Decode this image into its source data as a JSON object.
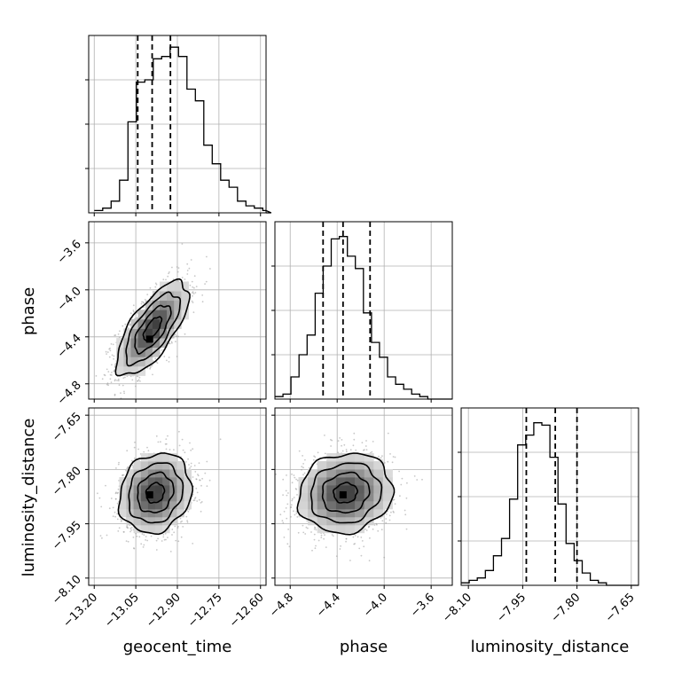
{
  "chart_data": {
    "type": "corner",
    "parameters": [
      "geocent_time",
      "phase",
      "luminosity_distance"
    ],
    "axes": {
      "geocent_time": {
        "label": "geocent_time",
        "range": [
          -13.22,
          -12.58
        ],
        "ticks": [
          -13.2,
          -13.05,
          -12.9,
          -12.75,
          -12.6
        ],
        "tick_labels": [
          "−13.20",
          "−13.05",
          "−12.90",
          "−12.75",
          "−12.60"
        ]
      },
      "phase": {
        "label": "phase",
        "range": [
          -4.93,
          -3.42
        ],
        "ticks": [
          -4.8,
          -4.4,
          -4.0,
          -3.6
        ],
        "tick_labels": [
          "−4.8",
          "−4.4",
          "−4.0",
          "−3.6"
        ]
      },
      "luminosity_distance": {
        "label": "luminosity_distance",
        "range": [
          -8.12,
          -7.63
        ],
        "ticks": [
          -8.1,
          -7.95,
          -7.8,
          -7.65
        ],
        "tick_labels": [
          "−8.10",
          "−7.95",
          "−7.80",
          "−7.65"
        ]
      }
    },
    "marginals": [
      {
        "parameter": "geocent_time",
        "bin_start": -13.2,
        "bin_width": 0.0304,
        "counts": [
          1,
          2,
          5,
          14,
          39,
          56,
          57,
          66,
          67,
          71,
          67,
          53,
          48,
          29,
          21,
          14,
          11,
          5,
          3,
          2,
          1,
          0
        ],
        "ymax": 76,
        "quantiles": [
          -13.043,
          -12.991,
          -12.925
        ]
      },
      {
        "parameter": "phase",
        "bin_start": -4.93,
        "bin_width": 0.0685,
        "counts": [
          1,
          2,
          9,
          18,
          26,
          43,
          54,
          65,
          66,
          58,
          53,
          35,
          23,
          17,
          9,
          6,
          4,
          2,
          1,
          0,
          0,
          0
        ],
        "ymax": 72,
        "quantiles": [
          -4.52,
          -4.35,
          -4.12
        ]
      },
      {
        "parameter": "luminosity_distance",
        "bin_start": -8.12,
        "bin_width": 0.0223,
        "counts": [
          1,
          2,
          3,
          6,
          12,
          19,
          35,
          57,
          61,
          66,
          65,
          52,
          33,
          17,
          10,
          5,
          2,
          1,
          0,
          0,
          0,
          0
        ],
        "ymax": 72,
        "quantiles": [
          -7.94,
          -7.86,
          -7.8
        ]
      }
    ],
    "joints": [
      {
        "x": "geocent_time",
        "y": "phase",
        "row": 1,
        "col": 0,
        "mean": [
          -12.99,
          -4.33
        ],
        "sd": [
          0.065,
          0.2
        ],
        "corr": 0.7,
        "peak": [
          -13.0,
          -4.42
        ]
      },
      {
        "x": "geocent_time",
        "y": "luminosity_distance",
        "row": 2,
        "col": 0,
        "mean": [
          -12.98,
          -7.865
        ],
        "sd": [
          0.065,
          0.055
        ],
        "corr": 0.15,
        "peak": [
          -13.0,
          -7.87
        ]
      },
      {
        "x": "phase",
        "y": "luminosity_distance",
        "row": 2,
        "col": 1,
        "mean": [
          -4.33,
          -7.865
        ],
        "sd": [
          0.2,
          0.055
        ],
        "corr": 0.1,
        "peak": [
          -4.35,
          -7.87
        ]
      }
    ],
    "contour_levels_sigma": [
      0.5,
      1.0,
      1.5,
      2.0
    ],
    "grid": true
  }
}
